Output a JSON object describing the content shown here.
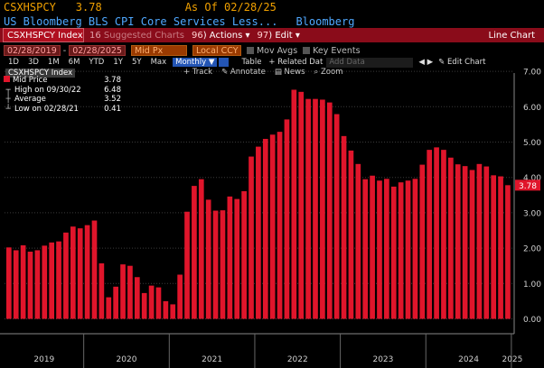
{
  "header": {
    "ticker": "CSXHSPCY",
    "last": "3.78",
    "as_of": "As Of 02/28/25",
    "description": "US Bloomberg BLS CPI Core Services Less...",
    "brand": "Bloomberg"
  },
  "command_bar": {
    "security": "CSXHSPCY Index",
    "suggested_num": "16",
    "suggested": "Suggested Charts ",
    "actions_num": "96",
    "actions": "Actions",
    "edit_num": "97",
    "edit": "Edit",
    "title": "Line Chart"
  },
  "options": {
    "start_date": "02/28/2019",
    "end_date": "02/28/2025",
    "price_field": "Mid Px",
    "currency": "Local CCY",
    "mov_avgs": "Mov Avgs",
    "key_events": "Key Events"
  },
  "periods": [
    "1D",
    "3D",
    "1M",
    "6M",
    "YTD",
    "1Y",
    "5Y",
    "Max"
  ],
  "frequency": "Monthly",
  "table_label": "Table",
  "related_label": "+ Related Dat",
  "add_data_placeholder": "Add Data",
  "edit_chart_label": "Edit Chart",
  "chart_tools": {
    "track": "Track",
    "annotate": "Annotate",
    "news": "News",
    "zoom": "Zoom"
  },
  "legend": {
    "index_name": "CSXHSPCY Index",
    "mid_price_label": "Mid Price",
    "mid_price_value": "3.78",
    "high_label": "High on 09/30/22",
    "high_value": "6.48",
    "average_label": "Average",
    "average_value": "3.52",
    "low_label": "Low on 02/28/21",
    "low_value": "0.41"
  },
  "colors": {
    "bar": "#e0152b",
    "background": "#000000",
    "accent_orange": "#f0a000",
    "grid": "#3a3a3a"
  },
  "chart_data": {
    "type": "bar",
    "title": "",
    "xlabel": "",
    "ylabel": "",
    "ylim": [
      -0.4,
      7.0
    ],
    "y_ticks": [
      "0.00",
      "1.00",
      "2.00",
      "3.00",
      "4.00",
      "5.00",
      "6.00",
      "7.00"
    ],
    "x_ticks": [
      "2019",
      "2020",
      "2021",
      "2022",
      "2023",
      "2024",
      "2025"
    ],
    "last_value_label": "3.78",
    "series": [
      {
        "name": "Mid Price",
        "values": [
          2.02,
          1.94,
          2.08,
          1.9,
          1.94,
          2.07,
          2.16,
          2.19,
          2.44,
          2.61,
          2.56,
          2.65,
          2.78,
          1.57,
          0.61,
          0.91,
          1.54,
          1.5,
          1.18,
          0.73,
          0.94,
          0.89,
          0.5,
          0.41,
          1.25,
          3.03,
          3.76,
          3.95,
          3.37,
          3.06,
          3.07,
          3.46,
          3.39,
          3.61,
          4.59,
          4.87,
          5.09,
          5.21,
          5.29,
          5.64,
          6.48,
          6.42,
          6.22,
          6.22,
          6.2,
          6.12,
          5.79,
          5.17,
          4.76,
          4.38,
          3.95,
          4.05,
          3.91,
          3.96,
          3.74,
          3.86,
          3.91,
          3.96,
          4.36,
          4.78,
          4.85,
          4.78,
          4.56,
          4.37,
          4.32,
          4.21,
          4.38,
          4.31,
          4.06,
          4.03,
          3.78
        ],
        "x_start": "2019-02",
        "frequency": "monthly"
      }
    ]
  }
}
